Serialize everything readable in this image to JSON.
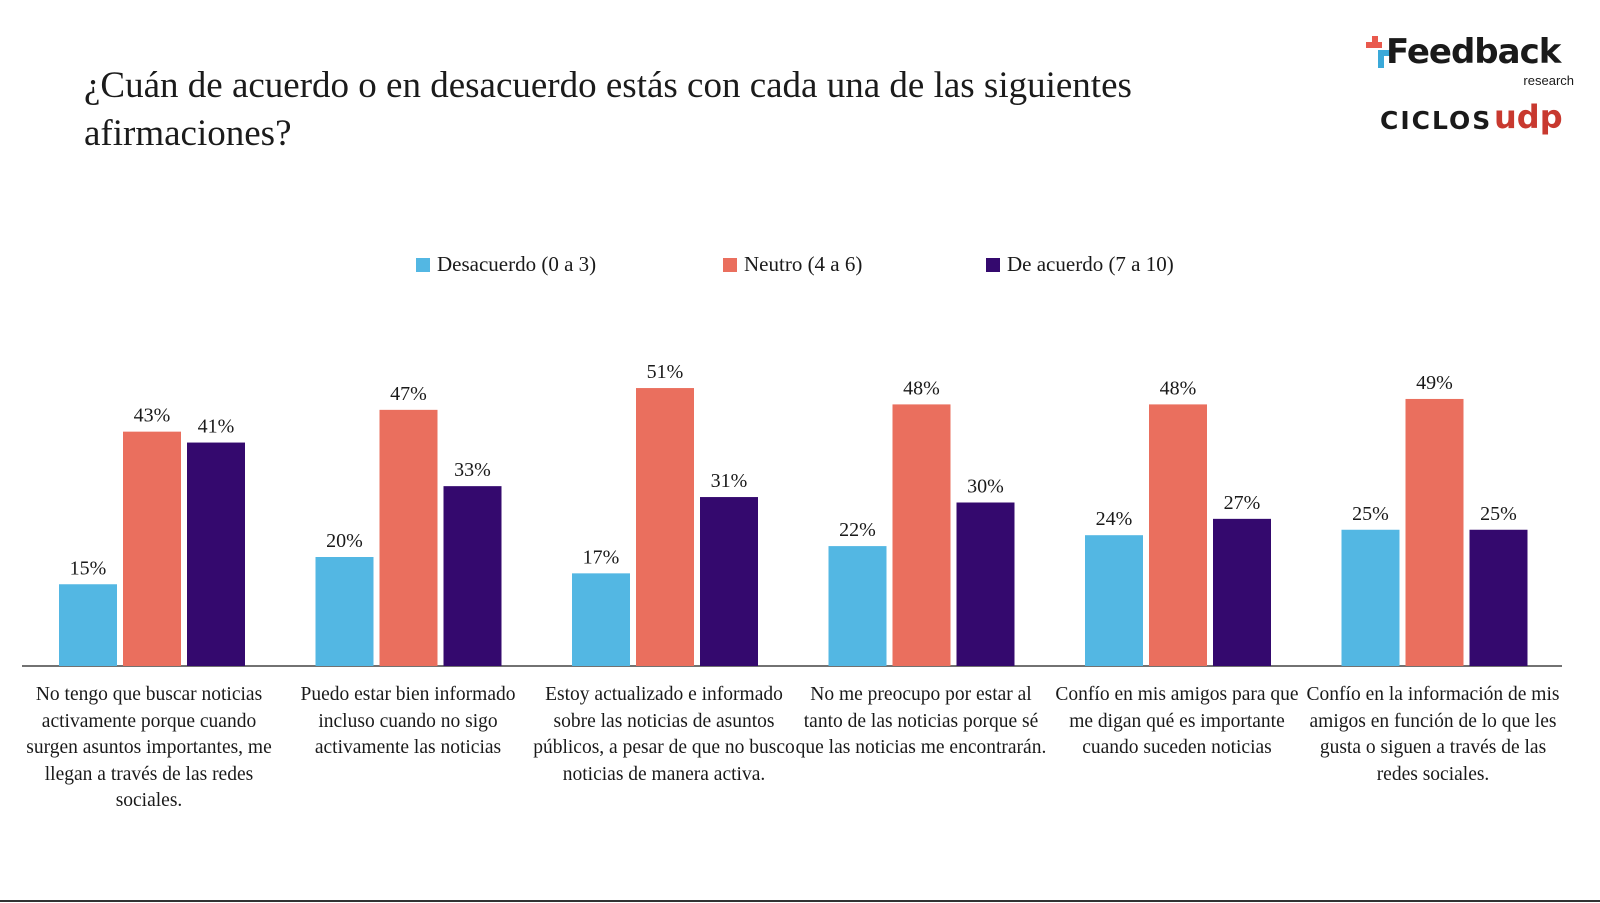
{
  "title": "¿Cuán de acuerdo o en desacuerdo estás con cada una de las siguientes afirmaciones?",
  "logos": {
    "feedback_name": "Feedback",
    "feedback_sub": "research",
    "ciclos": "CICLOS",
    "udp": "udp"
  },
  "legend": [
    {
      "label": "Desacuerdo (0 a 3)",
      "color": "#53b7e3"
    },
    {
      "label": "Neutro (4 a 6)",
      "color": "#ea6f5e"
    },
    {
      "label": "De acuerdo (7 a 10)",
      "color": "#34096e"
    }
  ],
  "chart_data": {
    "type": "bar",
    "categories": [
      "No tengo que buscar noticias activamente porque cuando surgen asuntos importantes, me llegan a través de las redes sociales.",
      "Puedo estar bien informado incluso cuando no sigo activamente las noticias",
      "Estoy actualizado e informado sobre las noticias de asuntos públicos, a pesar de que no busco noticias de manera activa.",
      "No me preocupo por estar al tanto de las noticias porque sé que las noticias me encontrarán.",
      "Confío en mis amigos para que me digan qué es importante cuando suceden noticias",
      "Confío en la información de mis amigos en función de lo que les gusta o siguen a través de las redes sociales."
    ],
    "series": [
      {
        "name": "Desacuerdo (0 a 3)",
        "color": "#53b7e3",
        "values": [
          15,
          20,
          17,
          22,
          24,
          25
        ]
      },
      {
        "name": "Neutro (4 a 6)",
        "color": "#ea6f5e",
        "values": [
          43,
          47,
          51,
          48,
          48,
          49
        ]
      },
      {
        "name": "De acuerdo (7 a 10)",
        "color": "#34096e",
        "values": [
          41,
          33,
          31,
          30,
          27,
          25
        ]
      }
    ],
    "data_labels": [
      [
        "15%",
        "20%",
        "17%",
        "22%",
        "24%",
        "25%"
      ],
      [
        "43%",
        "47%",
        "51%",
        "48%",
        "48%",
        "49%"
      ],
      [
        "41%",
        "33%",
        "31%",
        "30%",
        "27%",
        "25%"
      ]
    ],
    "value_suffix": "%",
    "legend_position": "top-center",
    "grid": false,
    "ylim": [
      0,
      51
    ]
  }
}
